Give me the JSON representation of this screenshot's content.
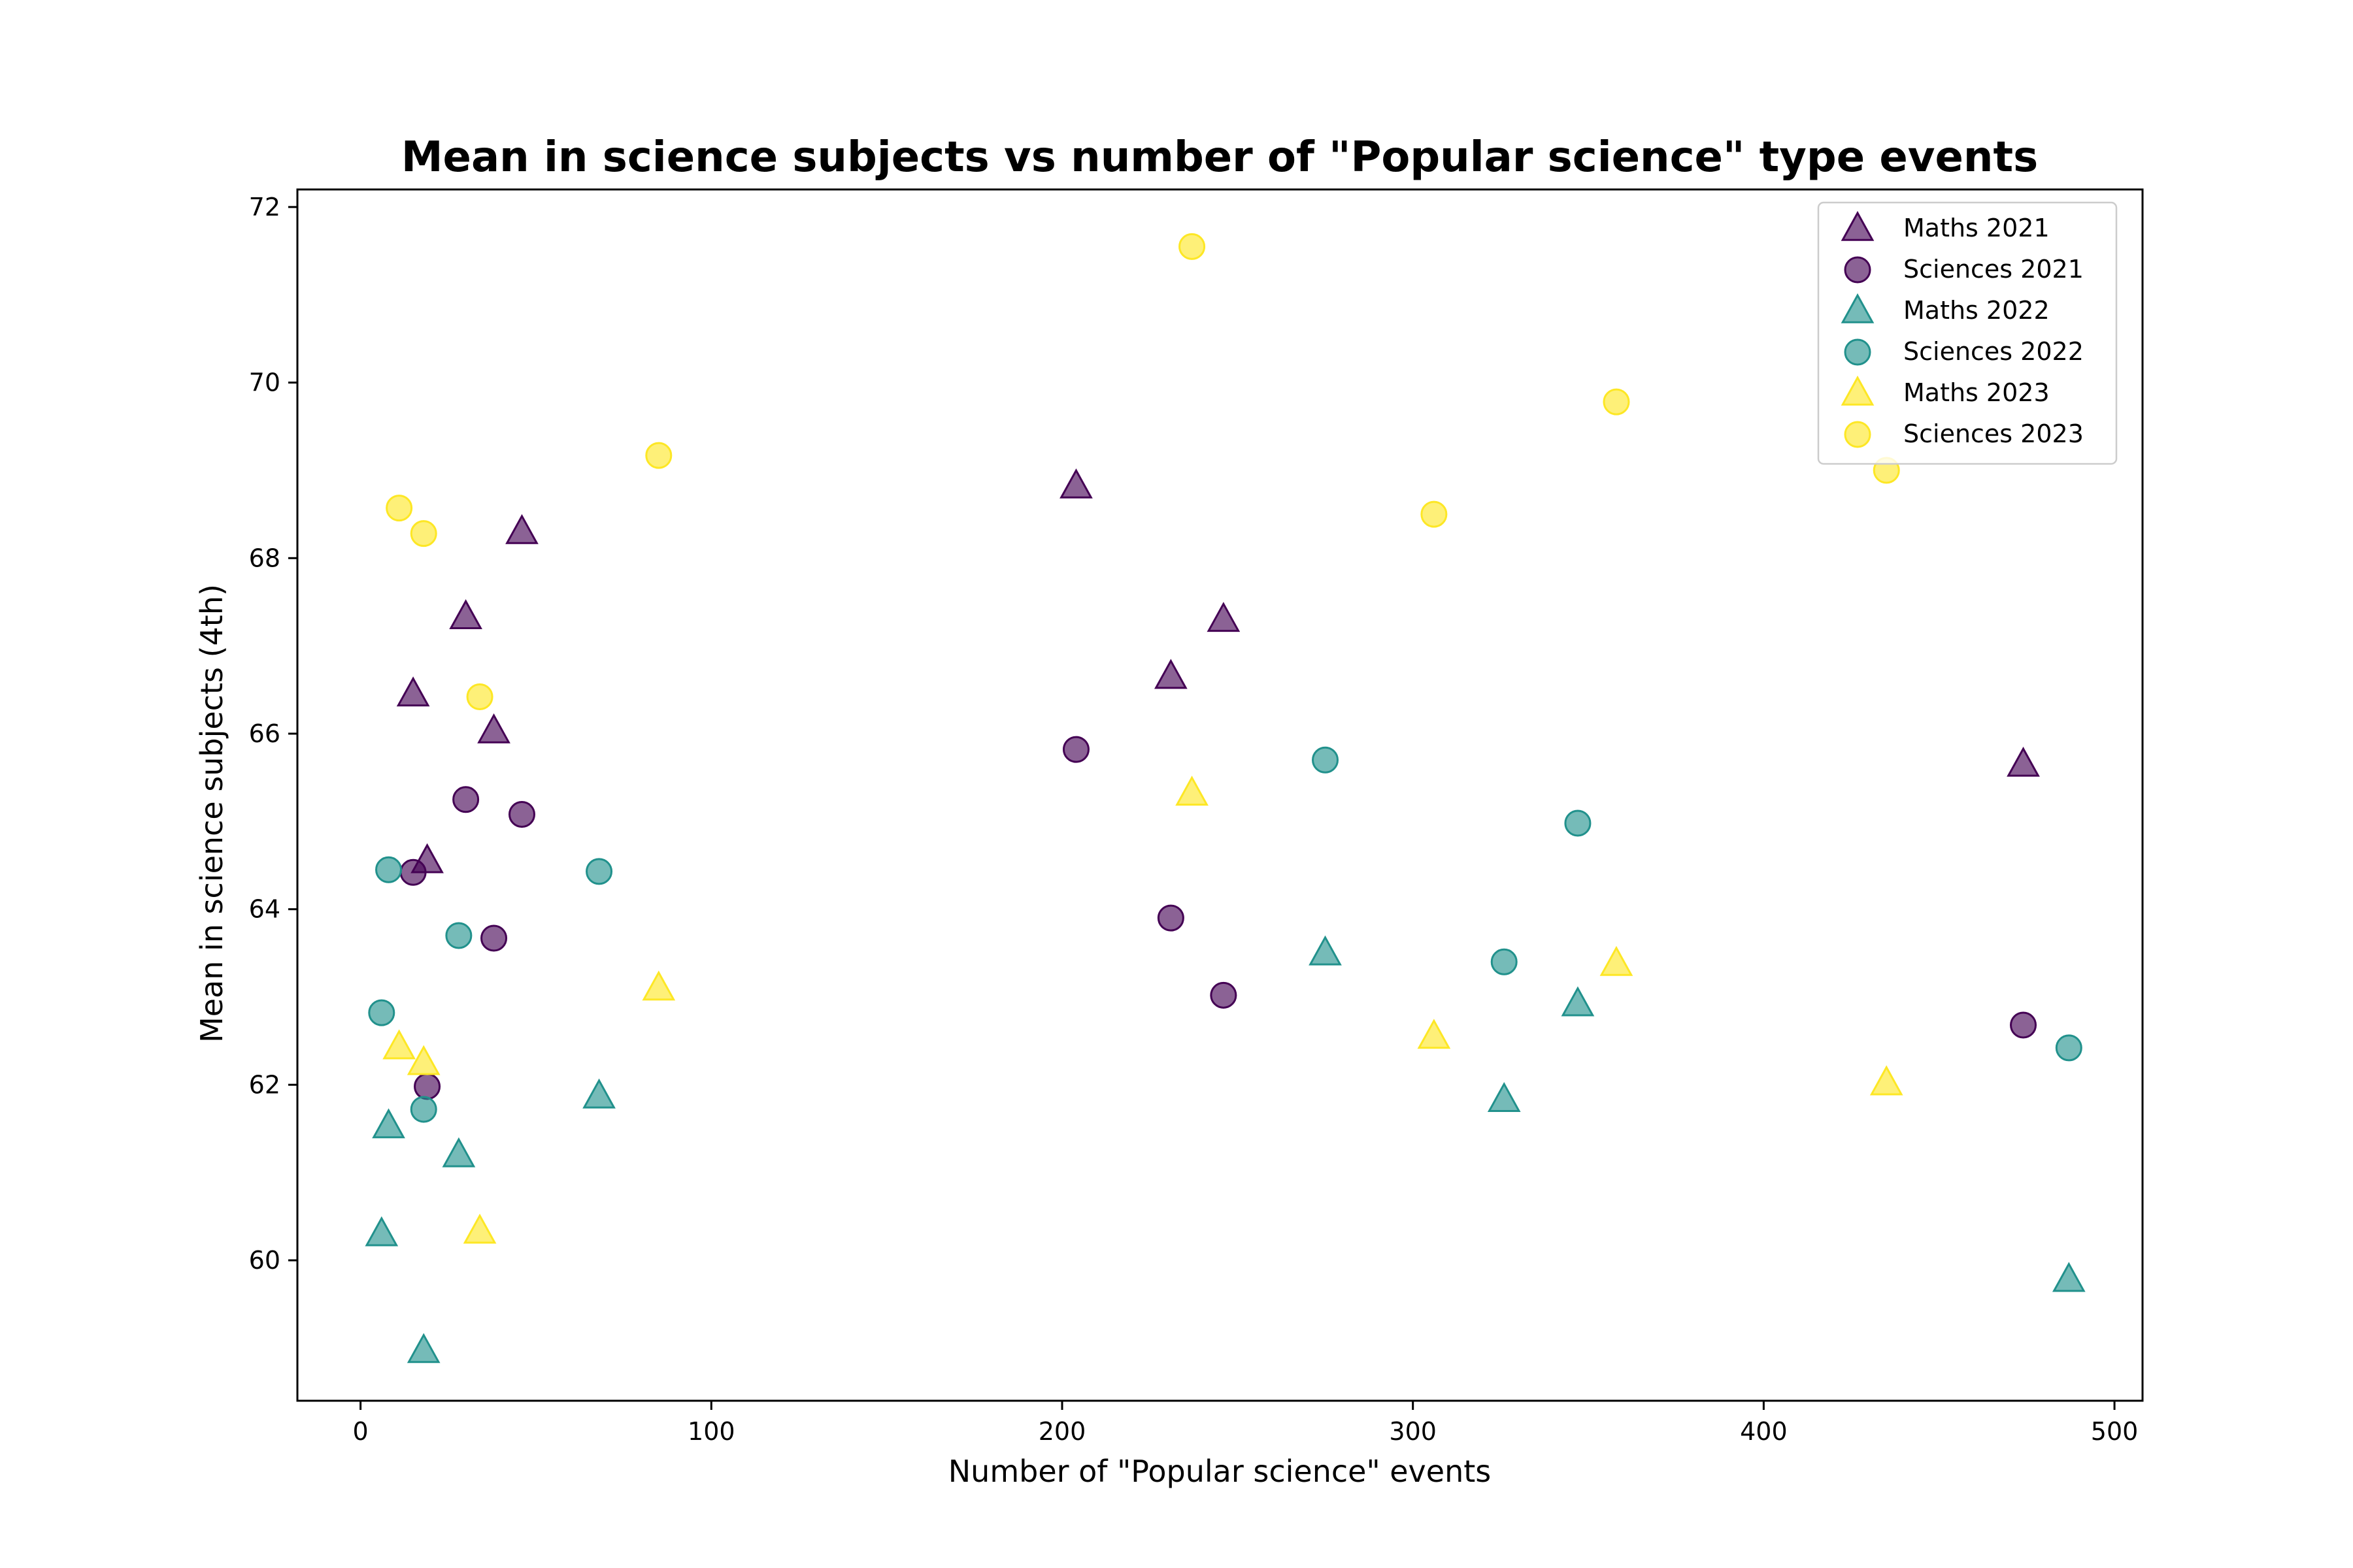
{
  "chart_data": {
    "type": "scatter",
    "title": "Mean in science subjects vs number of \"Popular science\" type events",
    "xlabel": "Number of \"Popular science\" events",
    "ylabel": "Mean in science subjects (4th)",
    "xlim": [
      -18,
      508
    ],
    "ylim": [
      58.4,
      72.2
    ],
    "x_ticks": [
      0,
      100,
      200,
      300,
      400,
      500
    ],
    "y_ticks": [
      60,
      62,
      64,
      66,
      68,
      70,
      72
    ],
    "grid": false,
    "legend_position": "top-right",
    "series": [
      {
        "name": "Maths 2021",
        "marker": "triangle",
        "color": "#440154",
        "points": [
          [
            15,
            66.45
          ],
          [
            19,
            64.55
          ],
          [
            30,
            67.33
          ],
          [
            38,
            66.03
          ],
          [
            46,
            68.3
          ],
          [
            204,
            68.82
          ],
          [
            231,
            66.65
          ],
          [
            246,
            67.3
          ],
          [
            474,
            65.65
          ]
        ]
      },
      {
        "name": "Sciences 2021",
        "marker": "circle",
        "color": "#440154",
        "points": [
          [
            15,
            64.42
          ],
          [
            19,
            61.98
          ],
          [
            30,
            65.25
          ],
          [
            38,
            63.67
          ],
          [
            46,
            65.08
          ],
          [
            204,
            65.82
          ],
          [
            231,
            63.9
          ],
          [
            246,
            63.02
          ],
          [
            474,
            62.68
          ]
        ]
      },
      {
        "name": "Maths 2022",
        "marker": "triangle",
        "color": "#21918c",
        "points": [
          [
            6,
            60.3
          ],
          [
            8,
            61.53
          ],
          [
            18,
            58.97
          ],
          [
            28,
            61.2
          ],
          [
            68,
            61.87
          ],
          [
            275,
            63.5
          ],
          [
            326,
            61.83
          ],
          [
            347,
            62.92
          ],
          [
            487,
            59.78
          ]
        ]
      },
      {
        "name": "Sciences 2022",
        "marker": "circle",
        "color": "#21918c",
        "points": [
          [
            6,
            62.82
          ],
          [
            8,
            64.45
          ],
          [
            18,
            61.72
          ],
          [
            28,
            63.7
          ],
          [
            68,
            64.43
          ],
          [
            275,
            65.7
          ],
          [
            326,
            63.4
          ],
          [
            347,
            64.98
          ],
          [
            487,
            62.42
          ]
        ]
      },
      {
        "name": "Maths 2023",
        "marker": "triangle",
        "color": "#fde725",
        "points": [
          [
            11,
            62.43
          ],
          [
            18,
            62.25
          ],
          [
            34,
            60.33
          ],
          [
            85,
            63.1
          ],
          [
            237,
            65.32
          ],
          [
            306,
            62.55
          ],
          [
            358,
            63.38
          ],
          [
            435,
            62.02
          ]
        ]
      },
      {
        "name": "Sciences 2023",
        "marker": "circle",
        "color": "#fde725",
        "points": [
          [
            11,
            68.57
          ],
          [
            18,
            68.28
          ],
          [
            34,
            66.42
          ],
          [
            85,
            69.17
          ],
          [
            237,
            71.55
          ],
          [
            306,
            68.5
          ],
          [
            358,
            69.78
          ],
          [
            435,
            69.0
          ]
        ]
      }
    ]
  }
}
